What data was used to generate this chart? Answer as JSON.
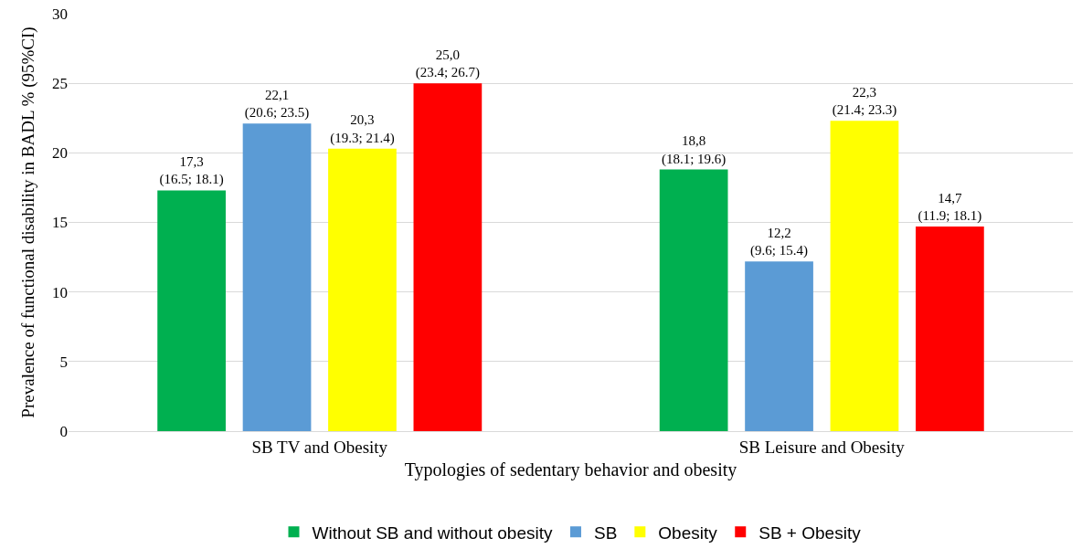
{
  "chart_data": {
    "type": "bar",
    "categories": [
      "SB TV and Obesity",
      "SB Leisure and Obesity"
    ],
    "xlabel": "Typologies of sedentary behavior and obesity",
    "ylabel": "Prevalence of functional disability in BADL % (95%CI)",
    "ylim": [
      0,
      30
    ],
    "yticks": [
      0,
      5,
      10,
      15,
      20,
      25,
      30
    ],
    "grid": "y",
    "legend": "bottom",
    "series": [
      {
        "name": "Without SB and without obesity",
        "color": "#00b050",
        "values": [
          17.3,
          18.8
        ],
        "value_labels": [
          "17,3\n(16.5; 18.1)",
          "18,8\n(18.1; 19.6)"
        ]
      },
      {
        "name": "SB",
        "color": "#5b9bd5",
        "values": [
          22.1,
          12.2
        ],
        "value_labels": [
          "22,1\n(20.6; 23.5)",
          "12,2\n(9.6; 15.4)"
        ]
      },
      {
        "name": "Obesity",
        "color": "#ffff00",
        "values": [
          20.3,
          22.3
        ],
        "value_labels": [
          "20,3\n(19.3; 21.4)",
          "22,3\n(21.4; 23.3)"
        ]
      },
      {
        "name": "SB + Obesity",
        "color": "#ff0000",
        "values": [
          25.0,
          14.7
        ],
        "value_labels": [
          "25,0\n(23.4; 26.7)",
          "14,7\n(11.9; 18.1)"
        ]
      }
    ]
  }
}
